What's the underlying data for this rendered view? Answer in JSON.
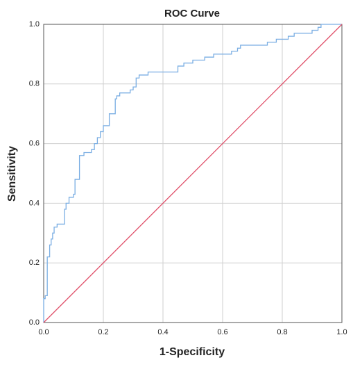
{
  "chart_data": {
    "type": "line",
    "title": "ROC Curve",
    "x_label": "1-Specificity",
    "y_label": "Sensitivity",
    "xlim": [
      0,
      1
    ],
    "ylim": [
      0,
      1
    ],
    "xticks": [
      {
        "value": 0,
        "label": "0.0"
      },
      0.2,
      0.4,
      0.6,
      0.8,
      {
        "value": 1,
        "label": "1.0"
      }
    ],
    "yticks": [
      {
        "value": 0,
        "label": "0.0"
      },
      0.2,
      0.4,
      0.6,
      0.8,
      {
        "value": 1,
        "label": "1.0"
      }
    ],
    "grid": true,
    "series": [
      {
        "color": "#7aaee3",
        "x": [
          0,
          0,
          0.005,
          0.005,
          0.012,
          0.012,
          0.02,
          0.02,
          0.025,
          0.025,
          0.03,
          0.03,
          0.035,
          0.035,
          0.045,
          0.045,
          0.07,
          0.07,
          0.075,
          0.075,
          0.085,
          0.085,
          0.1,
          0.1,
          0.105,
          0.105,
          0.12,
          0.12,
          0.135,
          0.135,
          0.16,
          0.16,
          0.17,
          0.17,
          0.18,
          0.18,
          0.19,
          0.19,
          0.2,
          0.2,
          0.22,
          0.22,
          0.24,
          0.24,
          0.245,
          0.245,
          0.255,
          0.255,
          0.29,
          0.29,
          0.3,
          0.3,
          0.31,
          0.31,
          0.32,
          0.32,
          0.35,
          0.35,
          0.45,
          0.45,
          0.47,
          0.47,
          0.5,
          0.5,
          0.54,
          0.54,
          0.57,
          0.57,
          0.63,
          0.63,
          0.65,
          0.65,
          0.66,
          0.66,
          0.75,
          0.75,
          0.78,
          0.78,
          0.82,
          0.82,
          0.84,
          0.84,
          0.9,
          0.9,
          0.92,
          0.92,
          0.93,
          0.93,
          1
        ],
        "values": [
          0,
          0.08,
          0.08,
          0.09,
          0.09,
          0.22,
          0.22,
          0.26,
          0.26,
          0.28,
          0.28,
          0.3,
          0.3,
          0.32,
          0.32,
          0.33,
          0.33,
          0.38,
          0.38,
          0.4,
          0.4,
          0.42,
          0.42,
          0.43,
          0.43,
          0.48,
          0.48,
          0.56,
          0.56,
          0.57,
          0.57,
          0.58,
          0.58,
          0.6,
          0.6,
          0.62,
          0.62,
          0.64,
          0.64,
          0.66,
          0.66,
          0.7,
          0.7,
          0.75,
          0.75,
          0.76,
          0.76,
          0.77,
          0.77,
          0.78,
          0.78,
          0.79,
          0.79,
          0.82,
          0.82,
          0.83,
          0.83,
          0.84,
          0.84,
          0.86,
          0.86,
          0.87,
          0.87,
          0.88,
          0.88,
          0.89,
          0.89,
          0.9,
          0.9,
          0.91,
          0.91,
          0.92,
          0.92,
          0.93,
          0.93,
          0.94,
          0.94,
          0.95,
          0.95,
          0.96,
          0.96,
          0.97,
          0.97,
          0.98,
          0.98,
          0.99,
          0.99,
          1,
          1
        ]
      },
      {
        "color": "#e0506a",
        "x": [
          0,
          1
        ],
        "values": [
          0,
          1
        ]
      }
    ]
  }
}
